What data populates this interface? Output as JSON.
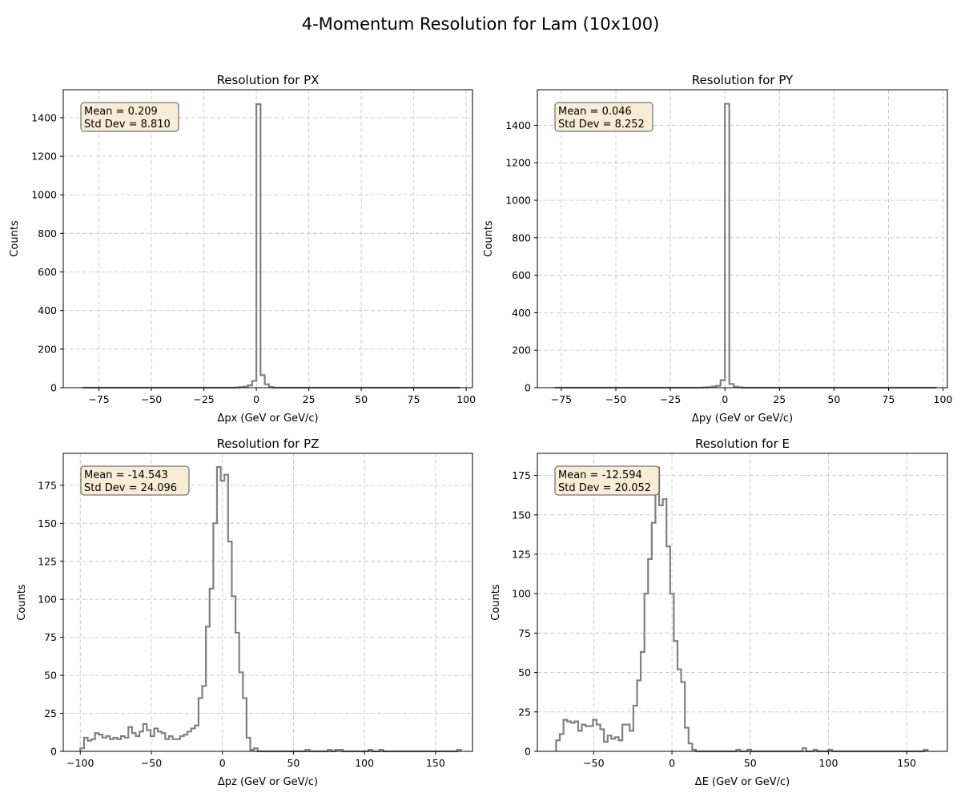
{
  "figure": {
    "title": "4-Momentum Resolution for Lam (10x100)"
  },
  "chart_data": [
    {
      "type": "histogram",
      "title": "Resolution for PX",
      "xlabel": "Δpx (GeV or GeV/c)",
      "ylabel": "Counts",
      "xlim": [
        -92,
        103
      ],
      "ylim": [
        0,
        1545
      ],
      "xticks": [
        -75,
        -50,
        -25,
        0,
        25,
        50,
        75,
        100
      ],
      "yticks": [
        0,
        200,
        400,
        600,
        800,
        1000,
        1200,
        1400
      ],
      "tick_labels_x": [
        "−75",
        "−50",
        "−25",
        "0",
        "25",
        "50",
        "75",
        "100"
      ],
      "tick_labels_y": [
        "0",
        "200",
        "400",
        "600",
        "800",
        "1000",
        "1200",
        "1400"
      ],
      "grid": true,
      "stats": {
        "mean": "Mean = 0.209",
        "std": "Std Dev = 8.810"
      },
      "bin_edges": [
        -83,
        -10,
        -8,
        -6,
        -4,
        -2,
        0,
        2,
        4,
        6,
        8,
        97
      ],
      "counts": [
        0,
        1,
        3,
        6,
        12,
        35,
        1470,
        65,
        18,
        4,
        0
      ]
    },
    {
      "type": "histogram",
      "title": "Resolution for PY",
      "xlabel": "Δpy (GeV or GeV/c)",
      "ylabel": "Counts",
      "xlim": [
        -86,
        102
      ],
      "ylim": [
        0,
        1590
      ],
      "xticks": [
        -75,
        -50,
        -25,
        0,
        25,
        50,
        75,
        100
      ],
      "yticks": [
        0,
        200,
        400,
        600,
        800,
        1000,
        1200,
        1400
      ],
      "tick_labels_x": [
        "−75",
        "−50",
        "−25",
        "0",
        "25",
        "50",
        "75",
        "100"
      ],
      "tick_labels_y": [
        "0",
        "200",
        "400",
        "600",
        "800",
        "1000",
        "1200",
        "1400"
      ],
      "grid": true,
      "stats": {
        "mean": "Mean = 0.046",
        "std": "Std Dev = 8.252"
      },
      "bin_edges": [
        -78,
        -10,
        -8,
        -6,
        -4,
        -2,
        0,
        2,
        4,
        6,
        8,
        97
      ],
      "counts": [
        0,
        1,
        3,
        6,
        10,
        40,
        1515,
        20,
        5,
        2,
        0
      ]
    },
    {
      "type": "histogram",
      "title": "Resolution for PZ",
      "xlabel": "Δpz (GeV or GeV/c)",
      "ylabel": "Counts",
      "xlim": [
        -112,
        176
      ],
      "ylim": [
        0,
        196
      ],
      "xticks": [
        -100,
        -50,
        0,
        50,
        100,
        150
      ],
      "yticks": [
        0,
        25,
        50,
        75,
        100,
        125,
        150,
        175
      ],
      "tick_labels_x": [
        "−100",
        "−50",
        "0",
        "50",
        "100",
        "150"
      ],
      "tick_labels_y": [
        "0",
        "25",
        "50",
        "75",
        "100",
        "125",
        "150",
        "175"
      ],
      "grid": true,
      "stats": {
        "mean": "Mean = -14.543",
        "std": "Std Dev = 24.096"
      },
      "x_start": -100,
      "bin_width": 2.6,
      "counts": [
        2,
        9,
        7,
        8,
        12,
        11,
        9,
        10,
        8,
        9,
        8,
        10,
        9,
        16,
        12,
        10,
        13,
        18,
        14,
        10,
        15,
        13,
        12,
        8,
        10,
        8,
        8,
        10,
        11,
        13,
        15,
        17,
        35,
        43,
        82,
        107,
        150,
        187,
        178,
        182,
        138,
        102,
        78,
        52,
        35,
        9,
        1,
        2,
        0,
        0,
        0,
        0,
        0,
        0,
        0,
        0,
        0,
        0,
        0,
        0,
        0,
        1,
        0,
        0,
        0,
        0,
        0,
        1,
        0,
        1,
        1,
        0,
        0,
        0,
        0,
        0,
        0,
        0,
        1,
        0,
        0,
        1,
        0,
        0,
        0,
        0,
        0,
        0,
        0,
        0,
        0,
        0,
        0,
        0,
        0,
        0,
        0,
        0,
        0,
        0,
        0,
        0,
        1
      ]
    },
    {
      "type": "histogram",
      "title": "Resolution for E",
      "xlabel": "ΔE (GeV or GeV/c)",
      "ylabel": "Counts",
      "xlim": [
        -86,
        176
      ],
      "ylim": [
        0,
        189
      ],
      "xticks": [
        -50,
        0,
        50,
        100,
        150
      ],
      "yticks": [
        0,
        25,
        50,
        75,
        100,
        125,
        150,
        175
      ],
      "tick_labels_x": [
        "−50",
        "0",
        "50",
        "100",
        "150"
      ],
      "tick_labels_y": [
        "0",
        "25",
        "50",
        "75",
        "100",
        "125",
        "150",
        "175"
      ],
      "grid": true,
      "stats": {
        "mean": "Mean = -12.594",
        "std": "Std Dev = 20.052"
      },
      "x_start": -74,
      "bin_width": 2.35,
      "counts": [
        7,
        11,
        20,
        19,
        18,
        19,
        13,
        17,
        16,
        16,
        20,
        17,
        14,
        6,
        10,
        8,
        9,
        7,
        17,
        17,
        13,
        29,
        45,
        63,
        100,
        122,
        145,
        180,
        156,
        160,
        130,
        100,
        70,
        52,
        44,
        15,
        5,
        1,
        0,
        0,
        0,
        0,
        0,
        0,
        0,
        0,
        0,
        0,
        0,
        1,
        0,
        0,
        1,
        0,
        0,
        0,
        0,
        0,
        0,
        0,
        0,
        0,
        0,
        0,
        0,
        0,
        0,
        2,
        0,
        0,
        1,
        0,
        0,
        0,
        1,
        0,
        0,
        0,
        0,
        0,
        0,
        0,
        0,
        0,
        0,
        0,
        0,
        0,
        0,
        0,
        0,
        0,
        0,
        0,
        0,
        0,
        0,
        0,
        0,
        0,
        1
      ]
    }
  ]
}
